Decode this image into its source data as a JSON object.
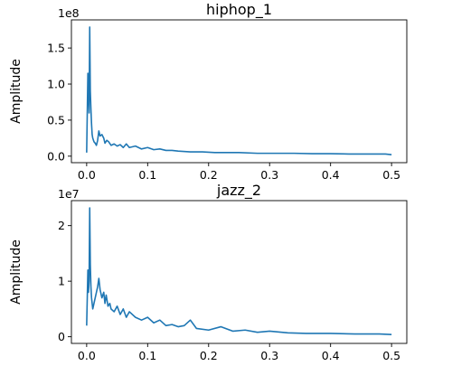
{
  "chart_data": [
    {
      "type": "line",
      "title": "hiphop_1",
      "xlabel": "",
      "ylabel": "Amplitude",
      "offset_text": "1e8",
      "xlim": [
        -0.025,
        0.525
      ],
      "ylim": [
        -0.09,
        1.89
      ],
      "x_ticks": [
        0.0,
        0.1,
        0.2,
        0.3,
        0.4,
        0.5
      ],
      "x_tick_labels": [
        "0.0",
        "0.1",
        "0.2",
        "0.3",
        "0.4",
        "0.5"
      ],
      "y_ticks": [
        0.0,
        0.5,
        1.0,
        1.5
      ],
      "y_tick_labels": [
        "0.0",
        "0.5",
        "1.0",
        "1.5"
      ],
      "color": "#1f77b4",
      "grid": false,
      "series": [
        {
          "x": [
            0.0,
            0.002,
            0.004,
            0.005,
            0.006,
            0.007,
            0.008,
            0.009,
            0.01,
            0.012,
            0.014,
            0.016,
            0.018,
            0.02,
            0.022,
            0.025,
            0.028,
            0.03,
            0.033,
            0.036,
            0.04,
            0.045,
            0.05,
            0.055,
            0.06,
            0.065,
            0.07,
            0.08,
            0.09,
            0.1,
            0.11,
            0.12,
            0.13,
            0.14,
            0.15,
            0.17,
            0.19,
            0.21,
            0.23,
            0.25,
            0.28,
            0.31,
            0.34,
            0.37,
            0.4,
            0.43,
            0.46,
            0.49,
            0.5
          ],
          "y": [
            0.05,
            1.15,
            0.6,
            1.79,
            0.9,
            0.65,
            0.45,
            0.3,
            0.25,
            0.2,
            0.18,
            0.15,
            0.22,
            0.35,
            0.28,
            0.3,
            0.25,
            0.18,
            0.22,
            0.2,
            0.15,
            0.17,
            0.14,
            0.16,
            0.12,
            0.17,
            0.12,
            0.14,
            0.1,
            0.12,
            0.09,
            0.1,
            0.08,
            0.08,
            0.07,
            0.06,
            0.06,
            0.05,
            0.05,
            0.05,
            0.04,
            0.04,
            0.04,
            0.035,
            0.035,
            0.03,
            0.03,
            0.03,
            0.02
          ]
        }
      ]
    },
    {
      "type": "line",
      "title": "jazz_2",
      "xlabel": "",
      "ylabel": "Amplitude",
      "offset_text": "1e7",
      "xlim": [
        -0.025,
        0.525
      ],
      "ylim": [
        -0.12,
        2.45
      ],
      "x_ticks": [
        0.0,
        0.1,
        0.2,
        0.3,
        0.4,
        0.5
      ],
      "x_tick_labels": [
        "0.0",
        "0.1",
        "0.2",
        "0.3",
        "0.4",
        "0.5"
      ],
      "y_ticks": [
        0,
        1,
        2
      ],
      "y_tick_labels": [
        "0",
        "1",
        "2"
      ],
      "color": "#1f77b4",
      "grid": false,
      "series": [
        {
          "x": [
            0.0,
            0.002,
            0.003,
            0.004,
            0.005,
            0.006,
            0.007,
            0.008,
            0.01,
            0.012,
            0.014,
            0.016,
            0.018,
            0.02,
            0.022,
            0.025,
            0.028,
            0.03,
            0.032,
            0.035,
            0.038,
            0.04,
            0.045,
            0.05,
            0.055,
            0.06,
            0.065,
            0.07,
            0.08,
            0.09,
            0.1,
            0.11,
            0.12,
            0.13,
            0.14,
            0.15,
            0.16,
            0.17,
            0.18,
            0.2,
            0.22,
            0.24,
            0.26,
            0.28,
            0.3,
            0.33,
            0.36,
            0.4,
            0.44,
            0.48,
            0.5
          ],
          "y": [
            0.2,
            1.2,
            0.8,
            1.0,
            2.32,
            1.3,
            0.9,
            0.7,
            0.5,
            0.6,
            0.7,
            0.8,
            0.9,
            1.05,
            0.85,
            0.7,
            0.8,
            0.6,
            0.75,
            0.55,
            0.6,
            0.5,
            0.45,
            0.55,
            0.4,
            0.5,
            0.35,
            0.45,
            0.35,
            0.3,
            0.35,
            0.25,
            0.3,
            0.2,
            0.22,
            0.18,
            0.2,
            0.3,
            0.15,
            0.12,
            0.18,
            0.1,
            0.12,
            0.08,
            0.1,
            0.07,
            0.06,
            0.06,
            0.05,
            0.05,
            0.04
          ]
        }
      ]
    }
  ]
}
